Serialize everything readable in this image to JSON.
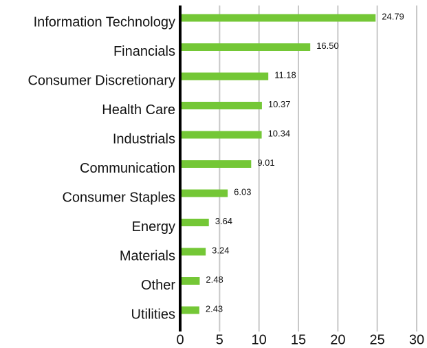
{
  "chart_data": {
    "type": "hbar",
    "categories": [
      "Information Technology",
      "Financials",
      "Consumer Discretionary",
      "Health Care",
      "Industrials",
      "Communication",
      "Consumer Staples",
      "Energy",
      "Materials",
      "Other",
      "Utilities"
    ],
    "values": [
      24.79,
      16.5,
      11.18,
      10.37,
      10.34,
      9.01,
      6.03,
      3.64,
      3.24,
      2.48,
      2.43
    ],
    "value_labels": [
      "24.79",
      "16.50",
      "11.18",
      "10.37",
      "10.34",
      "9.01",
      "6.03",
      "3.64",
      "3.24",
      "2.48",
      "2.43"
    ],
    "color": "#74c736",
    "xlim": [
      0,
      30
    ],
    "xticks": [
      0,
      5,
      10,
      15,
      20,
      25,
      30
    ],
    "grid": true
  }
}
